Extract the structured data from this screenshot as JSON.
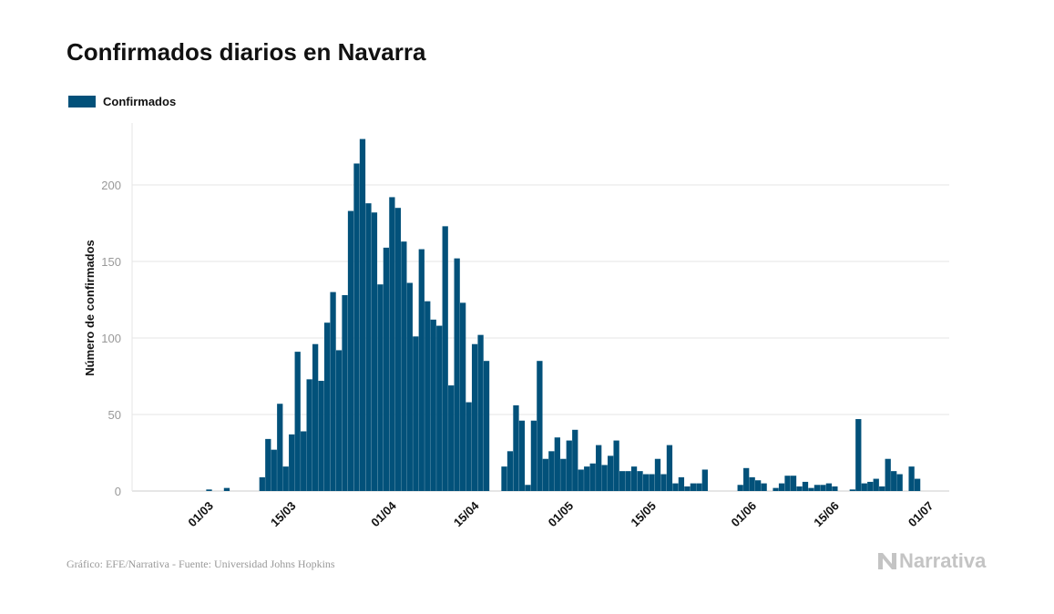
{
  "header": {
    "title": "Confirmados diarios en Navarra"
  },
  "legend": {
    "label": "Confirmados"
  },
  "footer": {
    "source": "Gráfico: EFE/Narrativa - Fuente: Universidad Johns Hopkins",
    "logo_text": "Narrativa"
  },
  "colors": {
    "bar": "#02517a",
    "grid": "#e6e6e6",
    "tick_text": "#999999",
    "axis_text": "#111111"
  },
  "icons": {
    "logo": "narrativa-n-icon"
  },
  "chart_data": {
    "type": "bar",
    "title": "Confirmados diarios en Navarra",
    "xlabel": "",
    "ylabel": "Número de confirmados",
    "ylim": [
      0,
      240
    ],
    "yticks": [
      0,
      50,
      100,
      150,
      200
    ],
    "grid": true,
    "legend_position": "top-left",
    "x_start": "2020-02-22",
    "xticks": [
      {
        "label": "01/03",
        "date": "2020-03-01"
      },
      {
        "label": "15/03",
        "date": "2020-03-15"
      },
      {
        "label": "01/04",
        "date": "2020-04-01"
      },
      {
        "label": "15/04",
        "date": "2020-04-15"
      },
      {
        "label": "01/05",
        "date": "2020-05-01"
      },
      {
        "label": "15/05",
        "date": "2020-05-15"
      },
      {
        "label": "01/06",
        "date": "2020-06-01"
      },
      {
        "label": "15/06",
        "date": "2020-06-15"
      },
      {
        "label": "01/07",
        "date": "2020-07-01"
      }
    ],
    "series": [
      {
        "name": "Confirmados",
        "values": [
          0,
          0,
          0,
          0,
          0,
          0,
          0,
          1,
          0,
          0,
          2,
          0,
          0,
          0,
          0,
          0,
          9,
          34,
          27,
          57,
          16,
          37,
          91,
          39,
          73,
          96,
          72,
          110,
          130,
          92,
          128,
          183,
          214,
          230,
          188,
          182,
          135,
          159,
          192,
          185,
          163,
          136,
          101,
          158,
          124,
          112,
          108,
          173,
          69,
          152,
          123,
          58,
          96,
          102,
          85,
          0,
          0,
          16,
          26,
          56,
          46,
          4,
          46,
          85,
          21,
          26,
          35,
          21,
          33,
          40,
          14,
          16,
          18,
          30,
          17,
          23,
          33,
          13,
          13,
          16,
          13,
          11,
          11,
          21,
          11,
          30,
          5,
          9,
          3,
          5,
          5,
          14,
          0,
          0,
          0,
          0,
          0,
          4,
          15,
          9,
          7,
          5,
          0,
          2,
          5,
          10,
          10,
          3,
          6,
          2,
          4,
          4,
          5,
          3,
          0,
          0,
          1,
          47,
          5,
          6,
          8,
          3,
          21,
          13,
          11,
          0,
          16,
          8
        ]
      }
    ]
  }
}
